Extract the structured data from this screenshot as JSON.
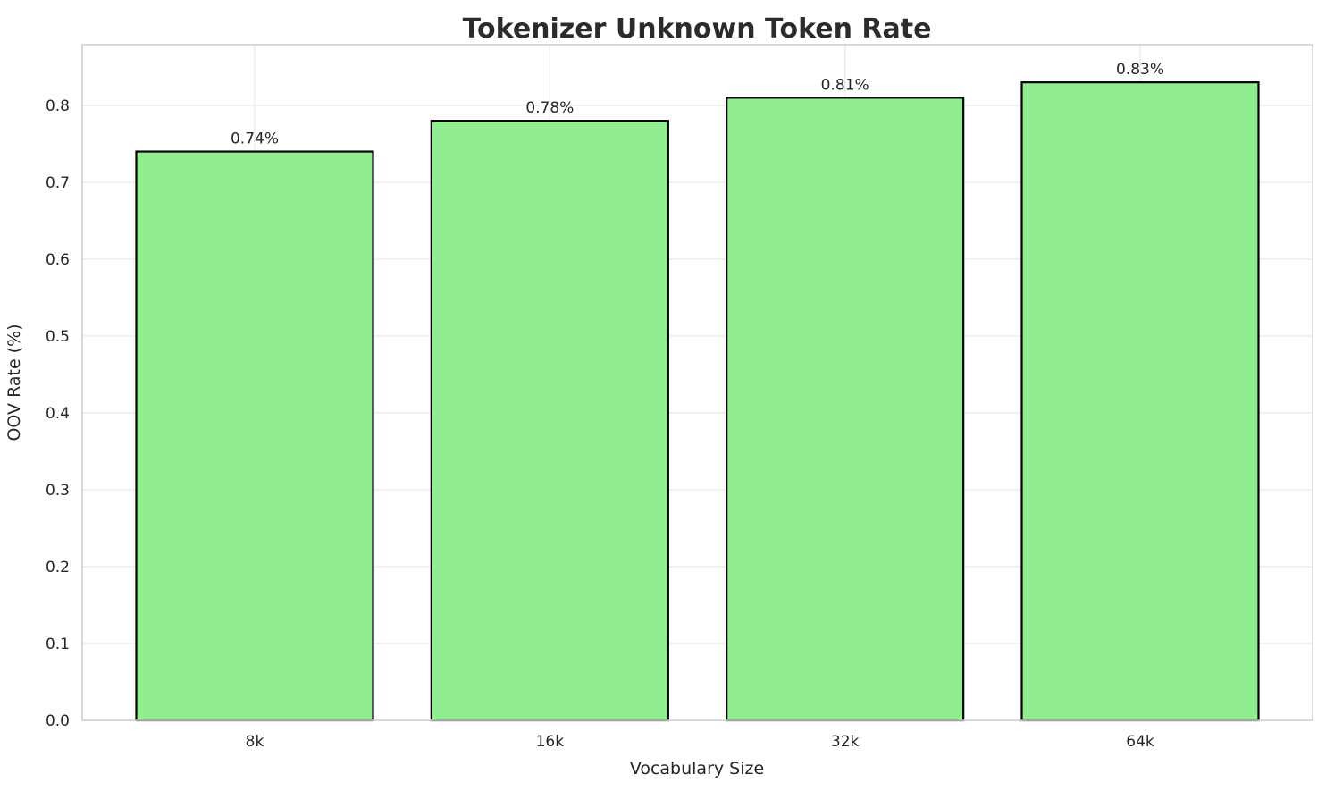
{
  "chart_data": {
    "type": "bar",
    "title": "Tokenizer Unknown Token Rate",
    "xlabel": "Vocabulary Size",
    "ylabel": "OOV Rate (%)",
    "categories": [
      "8k",
      "16k",
      "32k",
      "64k"
    ],
    "values": [
      0.74,
      0.78,
      0.81,
      0.83
    ],
    "value_labels": [
      "0.74%",
      "0.78%",
      "0.81%",
      "0.83%"
    ],
    "ytick_values": [
      0.0,
      0.1,
      0.2,
      0.3,
      0.4,
      0.5,
      0.6,
      0.7,
      0.8
    ],
    "ytick_labels": [
      "0.0",
      "0.1",
      "0.2",
      "0.3",
      "0.4",
      "0.5",
      "0.6",
      "0.7",
      "0.8"
    ],
    "ylim": [
      0.0,
      0.879
    ],
    "grid": true,
    "legend": null,
    "colors": {
      "bar_fill": "#90EE90",
      "bar_edge": "#000000",
      "grid_line": "#ebebeb",
      "axes_edge": "#d0d0d0",
      "text": "#262626",
      "title_text": "#2b2b2b",
      "background": "#ffffff"
    }
  }
}
